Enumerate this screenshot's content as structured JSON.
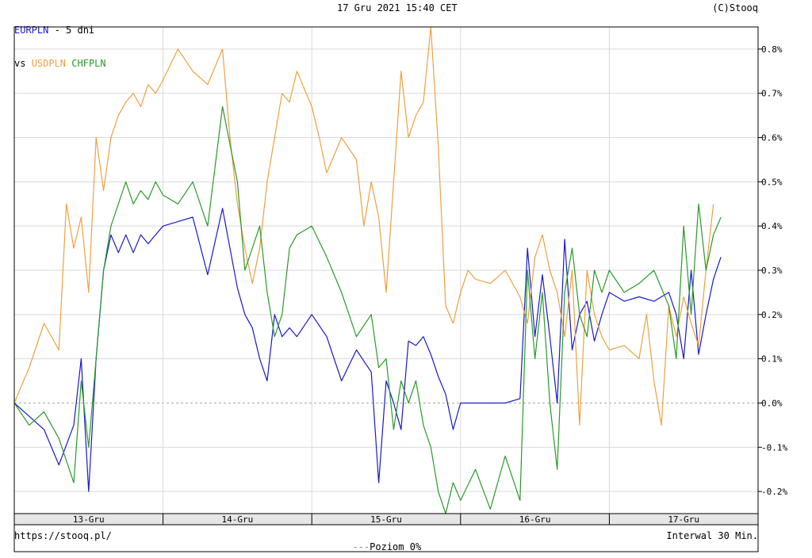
{
  "header": {
    "main_symbol": "EURPLN",
    "period": " - 5 dni",
    "vs_label": "vs ",
    "compare_1": "USDPLN",
    "compare_2": "CHFPLN",
    "datetime": "17 Gru 2021 15:40 CET",
    "copyright": "(C)Stooq"
  },
  "footer": {
    "url": "https://stooq.pl/",
    "legend_line": "Poziom 0%",
    "interval": "Interwal 30 Min."
  },
  "colors": {
    "EURPLN": "#1919cc",
    "USDPLN": "#f0a040",
    "CHFPLN": "#2a9a2a",
    "grid": "#d9d9d9",
    "zero_line": "#aaaaaa",
    "xbar": "#e6e6e6"
  },
  "chart_data": {
    "type": "line",
    "title": "EURPLN - 5 dni",
    "ylim": [
      -0.25,
      0.85
    ],
    "yticks": [
      -0.2,
      -0.1,
      0.0,
      0.1,
      0.2,
      0.3,
      0.4,
      0.5,
      0.6,
      0.7,
      0.8
    ],
    "ytick_labels": [
      "-0.2%",
      "-0.1%",
      "0.0%",
      "0.1%",
      "0.2%",
      "0.3%",
      "0.4%",
      "0.5%",
      "0.6%",
      "0.7%",
      "0.8%"
    ],
    "xlim": [
      0,
      100
    ],
    "xticks": [
      1,
      2,
      3,
      4,
      5
    ],
    "xtick_labels": [
      "13-Gru",
      "14-Gru",
      "15-Gru",
      "16-Gru",
      "17-Gru"
    ],
    "day_dividers": [
      20,
      40,
      60,
      80
    ],
    "grid": true,
    "series": [
      {
        "name": "EURPLN",
        "color": "#1919cc",
        "x": [
          0,
          2,
          4,
          6,
          8,
          9,
          10,
          11,
          12,
          13,
          14,
          15,
          16,
          17,
          18,
          19,
          20,
          22,
          24,
          26,
          28,
          30,
          31,
          32,
          33,
          34,
          35,
          36,
          37,
          38,
          40,
          42,
          44,
          46,
          48,
          49,
          50,
          51,
          52,
          53,
          54,
          55,
          56,
          57,
          58,
          59,
          60,
          62,
          64,
          66,
          68,
          69,
          70,
          71,
          72,
          73,
          74,
          75,
          76,
          77,
          78,
          79,
          80,
          82,
          84,
          86,
          88,
          89,
          90,
          91,
          92,
          93,
          94,
          95
        ],
        "y": [
          0.0,
          -0.03,
          -0.06,
          -0.14,
          -0.05,
          0.1,
          -0.2,
          0.1,
          0.3,
          0.38,
          0.34,
          0.38,
          0.34,
          0.38,
          0.36,
          0.38,
          0.4,
          0.41,
          0.42,
          0.29,
          0.44,
          0.26,
          0.2,
          0.17,
          0.1,
          0.05,
          0.2,
          0.15,
          0.17,
          0.15,
          0.2,
          0.15,
          0.05,
          0.12,
          0.07,
          -0.18,
          0.05,
          0.0,
          -0.06,
          0.14,
          0.13,
          0.15,
          0.11,
          0.06,
          0.02,
          -0.06,
          0.0,
          0.0,
          0.0,
          0.0,
          0.01,
          0.35,
          0.15,
          0.29,
          0.15,
          0.0,
          0.37,
          0.12,
          0.2,
          0.23,
          0.14,
          0.2,
          0.25,
          0.23,
          0.24,
          0.23,
          0.25,
          0.2,
          0.1,
          0.3,
          0.11,
          0.2,
          0.28,
          0.33
        ]
      },
      {
        "name": "USDPLN",
        "color": "#f0a040",
        "x": [
          0,
          2,
          4,
          6,
          7,
          8,
          9,
          10,
          11,
          12,
          13,
          14,
          15,
          16,
          17,
          18,
          19,
          20,
          22,
          24,
          26,
          28,
          29,
          30,
          31,
          32,
          33,
          34,
          35,
          36,
          37,
          38,
          40,
          41,
          42,
          44,
          46,
          47,
          48,
          49,
          50,
          51,
          52,
          53,
          54,
          55,
          56,
          57,
          58,
          59,
          60,
          61,
          62,
          64,
          66,
          68,
          69,
          70,
          71,
          72,
          73,
          74,
          75,
          76,
          77,
          78,
          79,
          80,
          82,
          84,
          85,
          86,
          87,
          88,
          89,
          90,
          91,
          92,
          93,
          94
        ],
        "y": [
          0.0,
          0.08,
          0.18,
          0.12,
          0.45,
          0.35,
          0.42,
          0.25,
          0.6,
          0.48,
          0.6,
          0.65,
          0.68,
          0.7,
          0.67,
          0.72,
          0.7,
          0.73,
          0.8,
          0.75,
          0.72,
          0.8,
          0.6,
          0.45,
          0.35,
          0.27,
          0.35,
          0.5,
          0.6,
          0.7,
          0.68,
          0.75,
          0.67,
          0.6,
          0.52,
          0.6,
          0.55,
          0.4,
          0.5,
          0.42,
          0.25,
          0.5,
          0.75,
          0.6,
          0.65,
          0.68,
          0.85,
          0.58,
          0.22,
          0.18,
          0.25,
          0.3,
          0.28,
          0.27,
          0.3,
          0.24,
          0.18,
          0.33,
          0.38,
          0.3,
          0.25,
          0.15,
          0.3,
          -0.05,
          0.3,
          0.2,
          0.15,
          0.12,
          0.13,
          0.1,
          0.2,
          0.05,
          -0.05,
          0.22,
          0.15,
          0.24,
          0.18,
          0.13,
          0.3,
          0.45
        ]
      },
      {
        "name": "CHFPLN",
        "color": "#2a9a2a",
        "x": [
          0,
          2,
          4,
          6,
          8,
          9,
          10,
          11,
          12,
          13,
          14,
          15,
          16,
          17,
          18,
          19,
          20,
          22,
          24,
          26,
          28,
          30,
          31,
          32,
          33,
          34,
          35,
          36,
          37,
          38,
          40,
          42,
          44,
          46,
          48,
          49,
          50,
          51,
          52,
          53,
          54,
          55,
          56,
          57,
          58,
          59,
          60,
          62,
          64,
          66,
          68,
          69,
          70,
          71,
          72,
          73,
          74,
          75,
          76,
          77,
          78,
          79,
          80,
          82,
          84,
          86,
          88,
          89,
          90,
          91,
          92,
          93,
          94,
          95
        ],
        "y": [
          0.0,
          -0.05,
          -0.02,
          -0.08,
          -0.18,
          0.05,
          -0.1,
          0.1,
          0.3,
          0.4,
          0.45,
          0.5,
          0.45,
          0.48,
          0.46,
          0.5,
          0.47,
          0.45,
          0.5,
          0.4,
          0.67,
          0.5,
          0.3,
          0.35,
          0.4,
          0.25,
          0.15,
          0.2,
          0.35,
          0.38,
          0.4,
          0.33,
          0.25,
          0.15,
          0.2,
          0.08,
          0.1,
          -0.06,
          0.05,
          0.0,
          0.05,
          -0.05,
          -0.1,
          -0.2,
          -0.25,
          -0.18,
          -0.22,
          -0.15,
          -0.24,
          -0.12,
          -0.22,
          0.3,
          0.1,
          0.25,
          0.0,
          -0.15,
          0.25,
          0.35,
          0.2,
          0.15,
          0.3,
          0.25,
          0.3,
          0.25,
          0.27,
          0.3,
          0.22,
          0.1,
          0.4,
          0.2,
          0.45,
          0.3,
          0.38,
          0.42
        ]
      }
    ]
  }
}
